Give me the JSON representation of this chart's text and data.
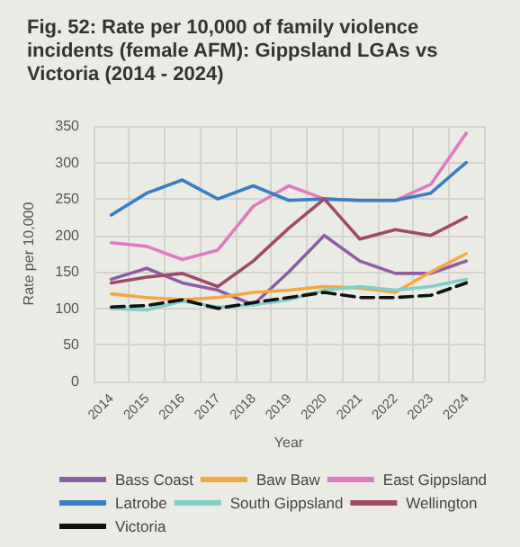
{
  "chart_data": {
    "type": "line",
    "title": "Fig. 52: Rate per 10,000 of family violence incidents (female AFM): Gippsland LGAs vs Victoria (2014 - 2024)",
    "xlabel": "Year",
    "ylabel": "Rate per 10,000",
    "categories": [
      "2014",
      "2015",
      "2016",
      "2017",
      "2018",
      "2019",
      "2020",
      "2021",
      "2022",
      "2023",
      "2024"
    ],
    "series": [
      {
        "name": "Bass Coast",
        "color": "#8e5ea2",
        "values": [
          140,
          155,
          135,
          125,
          105,
          150,
          200,
          165,
          148,
          148,
          165
        ]
      },
      {
        "name": "Baw Baw",
        "color": "#f5a742",
        "values": [
          120,
          115,
          112,
          115,
          122,
          125,
          130,
          128,
          122,
          150,
          175
        ]
      },
      {
        "name": "East Gippsland",
        "color": "#e07ac0",
        "values": [
          190,
          185,
          167,
          180,
          240,
          268,
          250,
          248,
          248,
          270,
          340
        ]
      },
      {
        "name": "Latrobe",
        "color": "#3a7fc4",
        "values": [
          228,
          258,
          276,
          250,
          268,
          248,
          250,
          248,
          248,
          258,
          300
        ]
      },
      {
        "name": "South Gippsland",
        "color": "#7fd0c8",
        "values": [
          100,
          98,
          110,
          102,
          105,
          112,
          125,
          130,
          125,
          130,
          140
        ]
      },
      {
        "name": "Wellington",
        "color": "#a04a6a",
        "values": [
          135,
          143,
          148,
          130,
          165,
          210,
          250,
          195,
          208,
          200,
          225
        ]
      },
      {
        "name": "Victoria",
        "color": "#111111",
        "line_style": "dashed",
        "values": [
          102,
          104,
          112,
          100,
          108,
          115,
          122,
          115,
          115,
          118,
          135
        ]
      }
    ],
    "ylim": [
      0,
      350
    ],
    "yticks": [
      0,
      50,
      100,
      150,
      200,
      250,
      300,
      350
    ],
    "grid": true,
    "legend": "bottom",
    "marker": "none",
    "line_style": "solid"
  }
}
